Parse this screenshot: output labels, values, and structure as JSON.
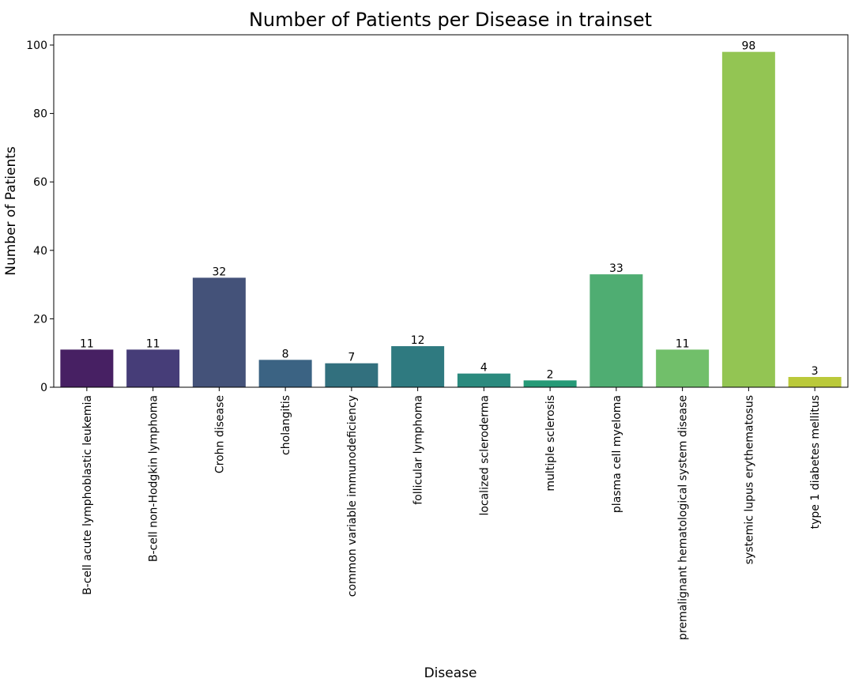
{
  "chart_data": {
    "type": "bar",
    "title": "Number of Patients per Disease in trainset",
    "xlabel": "Disease",
    "ylabel": "Number of Patients",
    "ylim": [
      0,
      103
    ],
    "yticks": [
      0,
      20,
      40,
      60,
      80,
      100
    ],
    "grid": false,
    "legend": "none",
    "categories": [
      "B-cell acute lymphoblastic leukemia",
      "B-cell non-Hodgkin lymphoma",
      "Crohn disease",
      "cholangitis",
      "common variable immunodeficiency",
      "follicular lymphoma",
      "localized scleroderma",
      "multiple sclerosis",
      "plasma cell myeloma",
      "premalignant hematological system disease",
      "systemic lupus erythematosus",
      "type 1 diabetes mellitus"
    ],
    "values": [
      11,
      11,
      32,
      8,
      7,
      12,
      4,
      2,
      33,
      11,
      98,
      3
    ],
    "colors": [
      "#472063",
      "#463d78",
      "#445279",
      "#3b6383",
      "#32707e",
      "#2f7a80",
      "#2b8a7e",
      "#269a77",
      "#4fad72",
      "#71bf6a",
      "#93c553",
      "#bac93a"
    ]
  }
}
